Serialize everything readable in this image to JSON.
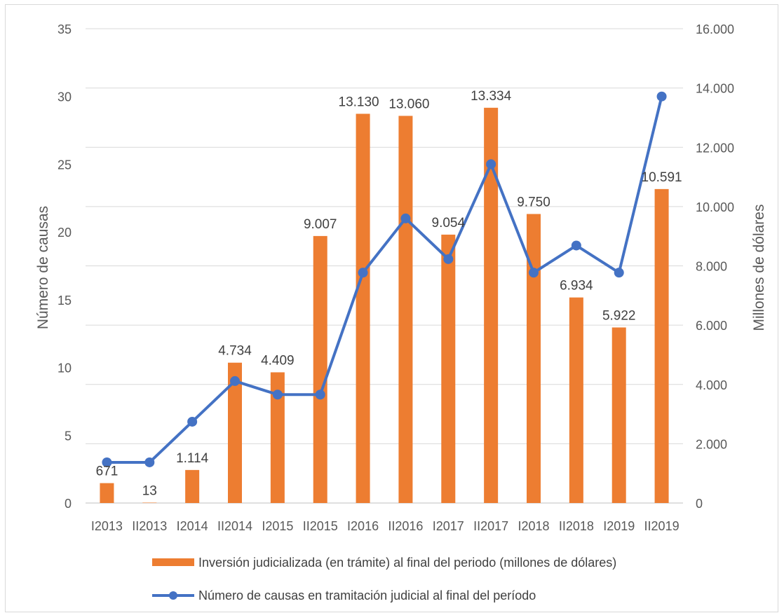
{
  "chart_data": {
    "type": "bar",
    "categories": [
      "I2013",
      "II2013",
      "I2014",
      "II2014",
      "I2015",
      "II2015",
      "I2016",
      "II2016",
      "I2017",
      "II2017",
      "I2018",
      "II2018",
      "I2019",
      "II2019"
    ],
    "series": [
      {
        "name": "Inversión judicializada (en trámite) al final del periodo (millones de dólares)",
        "type": "bar",
        "axis": "right",
        "color": "#ed7d31",
        "values": [
          671,
          13,
          1114,
          4734,
          4409,
          9007,
          13130,
          13060,
          9054,
          13334,
          9750,
          6934,
          5922,
          10591
        ],
        "labels": [
          "671",
          "13",
          "1.114",
          "4.734",
          "4.409",
          "9.007",
          "13.130",
          "13.060",
          "9.054",
          "13.334",
          "9.750",
          "6.934",
          "5.922",
          "10.591"
        ]
      },
      {
        "name": "Número de causas en tramitación judicial al final del período",
        "type": "line",
        "axis": "left",
        "color": "#4472c4",
        "values": [
          3,
          3,
          6,
          9,
          8,
          8,
          17,
          21,
          18,
          25,
          17,
          19,
          17,
          30
        ]
      }
    ],
    "ylabel": "Número de causas",
    "y2label": "Millones de dólares",
    "ylim": [
      0,
      35
    ],
    "y2lim": [
      0,
      16000
    ],
    "yticks": [
      "0",
      "5",
      "10",
      "15",
      "20",
      "25",
      "30",
      "35"
    ],
    "y2ticks": [
      "0",
      "2.000",
      "4.000",
      "6.000",
      "8.000",
      "10.000",
      "12.000",
      "14.000",
      "16.000"
    ],
    "grid": true,
    "legend_position": "bottom"
  }
}
